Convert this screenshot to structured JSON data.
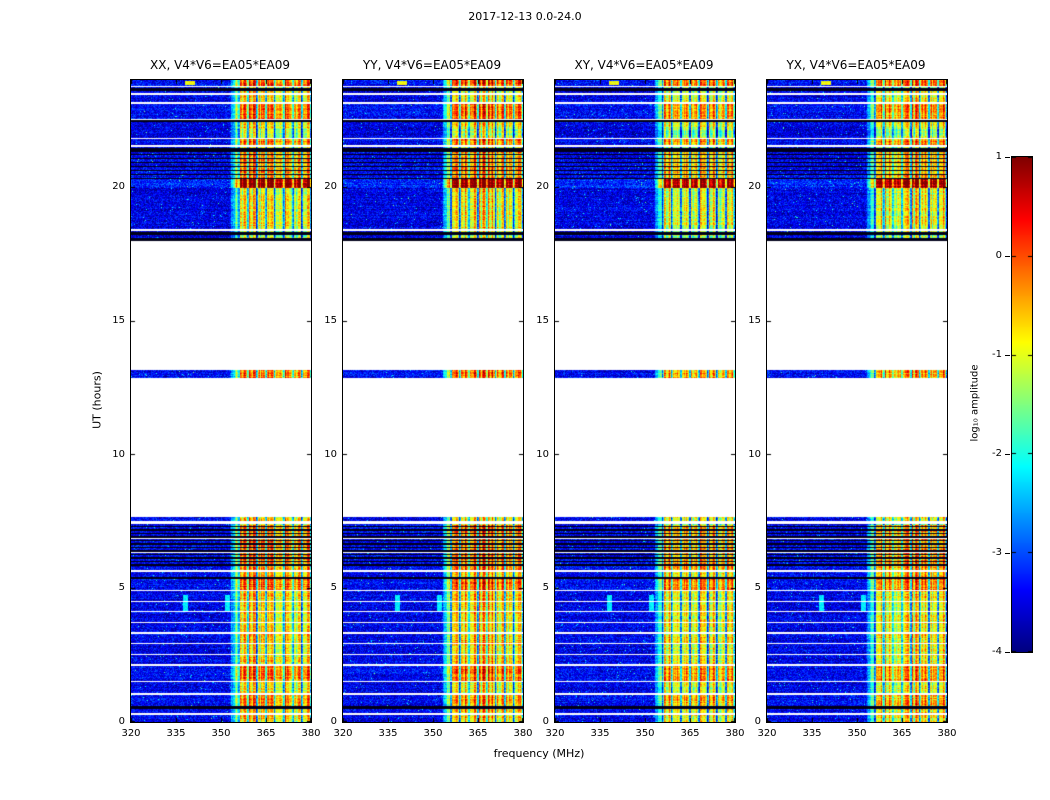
{
  "chart_data": {
    "type": "heatmap",
    "subtype": "radio-interferometer-dynamic-spectra",
    "title": "2017-12-13 0.0-24.0",
    "xlabel": "frequency (MHz)",
    "ylabel": "UT (hours)",
    "xlim": [
      320,
      380
    ],
    "ylim": [
      0,
      24
    ],
    "xticks": [
      320,
      335,
      350,
      365,
      380
    ],
    "yticks": [
      0,
      5,
      10,
      15,
      20
    ],
    "grid": false,
    "panels": [
      {
        "title": "XX, V4*V6=EA05*EA09"
      },
      {
        "title": "YY, V4*V6=EA05*EA09"
      },
      {
        "title": "XY, V4*V6=EA05*EA09"
      },
      {
        "title": "YX, V4*V6=EA05*EA09"
      }
    ],
    "colorbar": {
      "label": "log₁₀ amplitude",
      "ticks": [
        1,
        0,
        -1,
        -2,
        -3,
        -4
      ],
      "vmin": -4,
      "vmax": 1,
      "colormap": "jet"
    },
    "notes": "Four polarization panels (XX, YY, XY, YX) of baseline V4*V6=EA05*EA09. Blue noise background ~1e-3.5 with a strong RFI band ~356-380 MHz (green/yellow/orange). Data present 0-7.7 UT, a thin strip near 13 UT, and 18-24 UT; white elsewhere. Horizontal white gaps and black flagged rows throughout; saturated red band row near 20 UT.",
    "spectrum_model": {
      "background_level_log10": -3.55,
      "rfi_band": {
        "f_start_mhz": 352.5,
        "f_full_mhz": 356.5,
        "f_end_mhz": 380,
        "base_level_log10": -1.2
      },
      "panel_band_offsets": [
        0,
        0.05,
        -0.18,
        -0.12
      ],
      "data_segments_ut": [
        [
          0.0,
          7.66
        ],
        [
          12.85,
          13.15
        ],
        [
          18.0,
          24.0
        ]
      ],
      "white_gap_rows_ut": [
        [
          0.27,
          0.32
        ],
        [
          1.02,
          1.07
        ],
        [
          1.5,
          1.55
        ],
        [
          2.1,
          2.15
        ],
        [
          2.5,
          2.55
        ],
        [
          2.9,
          2.95
        ],
        [
          3.3,
          3.35
        ],
        [
          3.7,
          3.75
        ],
        [
          4.1,
          4.15
        ],
        [
          4.5,
          4.54
        ],
        [
          4.9,
          4.94
        ],
        [
          5.62,
          5.67
        ],
        [
          6.32,
          6.36
        ],
        [
          6.84,
          6.88
        ],
        [
          7.42,
          7.5
        ],
        [
          18.35,
          18.43
        ],
        [
          21.5,
          21.56
        ],
        [
          21.8,
          21.85
        ],
        [
          22.5,
          22.56
        ],
        [
          23.1,
          23.18
        ],
        [
          23.45,
          23.5
        ],
        [
          23.75,
          23.79
        ]
      ],
      "flagged_black_rows_ut": [
        [
          0.5,
          0.58
        ],
        [
          5.35,
          5.42
        ],
        [
          18.0,
          18.08
        ],
        [
          18.2,
          18.3
        ],
        [
          21.3,
          21.44
        ],
        [
          22.42,
          22.5
        ],
        [
          23.6,
          23.7
        ]
      ],
      "flagged_black_row_combs": [
        {
          "t0": 5.85,
          "t1": 7.35,
          "period": 0.13,
          "width": 0.05
        },
        {
          "t0": 20.3,
          "t1": 21.3,
          "period": 0.15,
          "width": 0.04
        }
      ],
      "band_hot_rows": [
        [
          0.0,
          0.5,
          0.5
        ],
        [
          0.58,
          1.02,
          0.8
        ],
        [
          1.07,
          1.5,
          0.3
        ],
        [
          1.55,
          2.1,
          1.0
        ],
        [
          2.15,
          2.5,
          0.5
        ],
        [
          2.55,
          2.9,
          0.4
        ],
        [
          2.95,
          3.3,
          0.55
        ],
        [
          3.35,
          3.7,
          0.4
        ],
        [
          3.75,
          4.1,
          0.5
        ],
        [
          4.15,
          4.5,
          0.4
        ],
        [
          4.54,
          4.9,
          0.5
        ],
        [
          4.94,
          5.35,
          1.1
        ],
        [
          5.42,
          5.62,
          0.6
        ],
        [
          5.67,
          7.35,
          0.9
        ],
        [
          7.5,
          7.66,
          0.4
        ],
        [
          12.85,
          13.15,
          0.9
        ],
        [
          18.45,
          19.95,
          0.35
        ],
        [
          19.95,
          20.3,
          2.2
        ],
        [
          20.3,
          21.3,
          0.8
        ],
        [
          21.56,
          21.8,
          1.0
        ],
        [
          22.15,
          22.42,
          0.4
        ],
        [
          22.56,
          23.1,
          1.0
        ],
        [
          23.18,
          23.45,
          0.4
        ],
        [
          23.5,
          23.6,
          0.4
        ],
        [
          23.79,
          24.01,
          1.2
        ]
      ],
      "features": [
        {
          "label": "narrowband streak",
          "t0": 4.15,
          "t1": 4.75,
          "f0": 337.5,
          "f1": 339.0,
          "amp": -2.2
        },
        {
          "label": "narrowband streak",
          "t0": 4.15,
          "t1": 4.75,
          "f0": 351.5,
          "f1": 353.0,
          "amp": -2.2
        },
        {
          "label": "narrowband burst",
          "t0": 23.8,
          "t1": 23.97,
          "f0": 338.0,
          "f1": 341.5,
          "amp": -0.9
        }
      ]
    }
  }
}
